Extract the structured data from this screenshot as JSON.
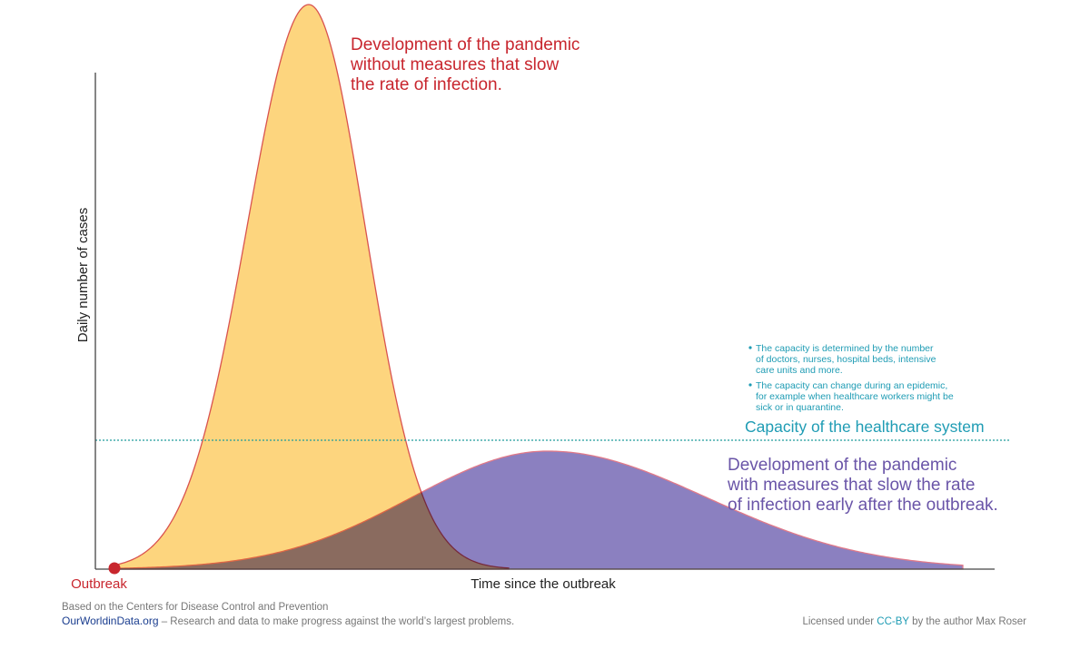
{
  "annotations": {
    "without_measures": [
      "Development of the pandemic",
      "without measures that slow",
      "the rate of infection."
    ],
    "with_measures": [
      "Development of the pandemic",
      "with measures that slow the rate",
      "of infection early after the outbreak."
    ],
    "capacity": "Capacity of the healthcare system",
    "notes": [
      [
        "The capacity is determined by the number",
        "of doctors, nurses, hospital beds, intensive",
        "care units and more."
      ],
      [
        "The capacity can change during an epidemic,",
        "for example when healthcare workers might be",
        "sick or in quarantine."
      ]
    ]
  },
  "axes": {
    "y_label": "Daily number of cases",
    "x_label": "Time since the outbreak",
    "origin_label": "Outbreak"
  },
  "footer": {
    "source": "Based on the Centers for Disease Control and Prevention",
    "site": "OurWorldinData.org",
    "tagline": " – Research and data to make progress against the world’s largest problems.",
    "license_prefix": "Licensed under ",
    "license": "CC-BY",
    "license_suffix": " by the author Max Roser"
  }
}
